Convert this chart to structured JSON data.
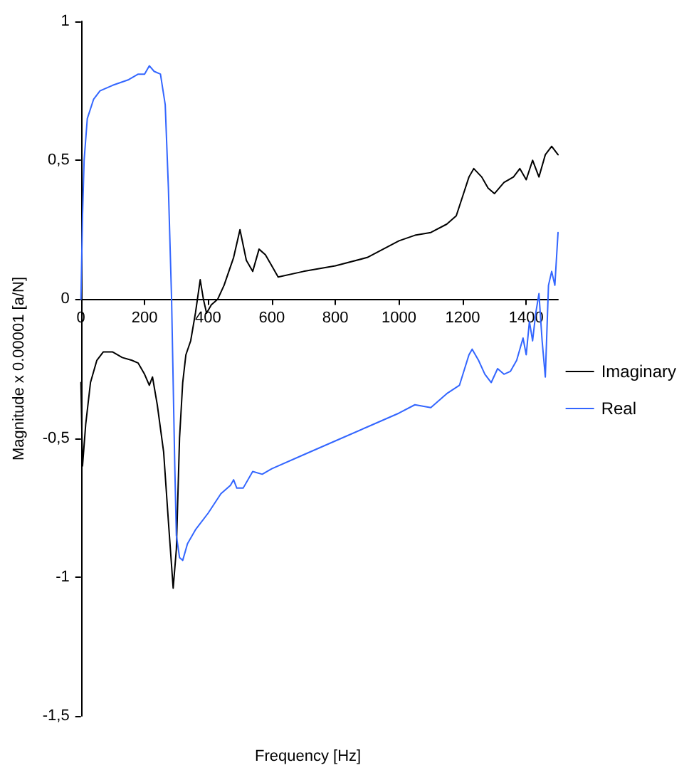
{
  "chart_data": {
    "type": "line",
    "xlabel": "Frequency [Hz]",
    "ylabel": "Magnitude x 0.00001 [a/N]",
    "xlim": [
      0,
      1500
    ],
    "xticks": [
      0,
      200,
      400,
      600,
      800,
      1000,
      1200,
      1400
    ],
    "ylim": [
      -1.5,
      1
    ],
    "yticks": [
      {
        "value": -1.5,
        "label": "-1,5"
      },
      {
        "value": -1,
        "label": "-1"
      },
      {
        "value": -0.5,
        "label": "-0,5"
      },
      {
        "value": 0,
        "label": "0"
      },
      {
        "value": 0.5,
        "label": "0,5"
      },
      {
        "value": 1,
        "label": "1"
      }
    ],
    "grid": false,
    "legend": "right",
    "marker": "none",
    "line_style": "solid",
    "series": [
      {
        "name": "Imaginary",
        "color": "#000000",
        "x": [
          0,
          5,
          15,
          30,
          50,
          70,
          100,
          130,
          160,
          180,
          200,
          215,
          225,
          240,
          260,
          275,
          290,
          300,
          310,
          320,
          330,
          345,
          360,
          375,
          385,
          395,
          410,
          430,
          450,
          480,
          500,
          520,
          540,
          560,
          580,
          600,
          620,
          700,
          800,
          900,
          950,
          1000,
          1050,
          1100,
          1150,
          1180,
          1200,
          1220,
          1235,
          1260,
          1280,
          1300,
          1330,
          1360,
          1380,
          1400,
          1420,
          1440,
          1460,
          1480,
          1500
        ],
        "values": [
          -0.3,
          -0.6,
          -0.45,
          -0.3,
          -0.22,
          -0.19,
          -0.19,
          -0.21,
          -0.22,
          -0.23,
          -0.27,
          -0.31,
          -0.28,
          -0.38,
          -0.55,
          -0.8,
          -1.04,
          -0.9,
          -0.5,
          -0.3,
          -0.2,
          -0.15,
          -0.05,
          0.07,
          0,
          -0.05,
          -0.02,
          0,
          0.05,
          0.15,
          0.25,
          0.14,
          0.1,
          0.18,
          0.16,
          0.12,
          0.08,
          0.1,
          0.12,
          0.15,
          0.18,
          0.21,
          0.23,
          0.24,
          0.27,
          0.3,
          0.37,
          0.44,
          0.47,
          0.44,
          0.4,
          0.38,
          0.42,
          0.44,
          0.47,
          0.43,
          0.5,
          0.44,
          0.52,
          0.55,
          0.52
        ]
      },
      {
        "name": "Real",
        "color": "#3366ff",
        "x": [
          0,
          5,
          10,
          20,
          40,
          60,
          100,
          150,
          180,
          200,
          215,
          230,
          250,
          265,
          275,
          285,
          290,
          295,
          300,
          310,
          320,
          335,
          360,
          400,
          440,
          470,
          480,
          490,
          510,
          540,
          570,
          600,
          700,
          800,
          900,
          1000,
          1050,
          1100,
          1150,
          1190,
          1220,
          1230,
          1250,
          1270,
          1290,
          1310,
          1330,
          1350,
          1370,
          1390,
          1400,
          1410,
          1420,
          1430,
          1440,
          1450,
          1460,
          1470,
          1480,
          1490,
          1500
        ],
        "values": [
          0,
          0.3,
          0.5,
          0.65,
          0.72,
          0.75,
          0.77,
          0.79,
          0.81,
          0.81,
          0.84,
          0.82,
          0.81,
          0.7,
          0.4,
          0,
          -0.3,
          -0.6,
          -0.85,
          -0.93,
          -0.94,
          -0.88,
          -0.83,
          -0.77,
          -0.7,
          -0.67,
          -0.65,
          -0.68,
          -0.68,
          -0.62,
          -0.63,
          -0.61,
          -0.56,
          -0.51,
          -0.46,
          -0.41,
          -0.38,
          -0.39,
          -0.34,
          -0.31,
          -0.2,
          -0.18,
          -0.22,
          -0.27,
          -0.3,
          -0.25,
          -0.27,
          -0.26,
          -0.22,
          -0.14,
          -0.2,
          -0.08,
          -0.15,
          -0.05,
          0.02,
          -0.15,
          -0.28,
          0.05,
          0.1,
          0.05,
          0.24
        ]
      }
    ]
  }
}
